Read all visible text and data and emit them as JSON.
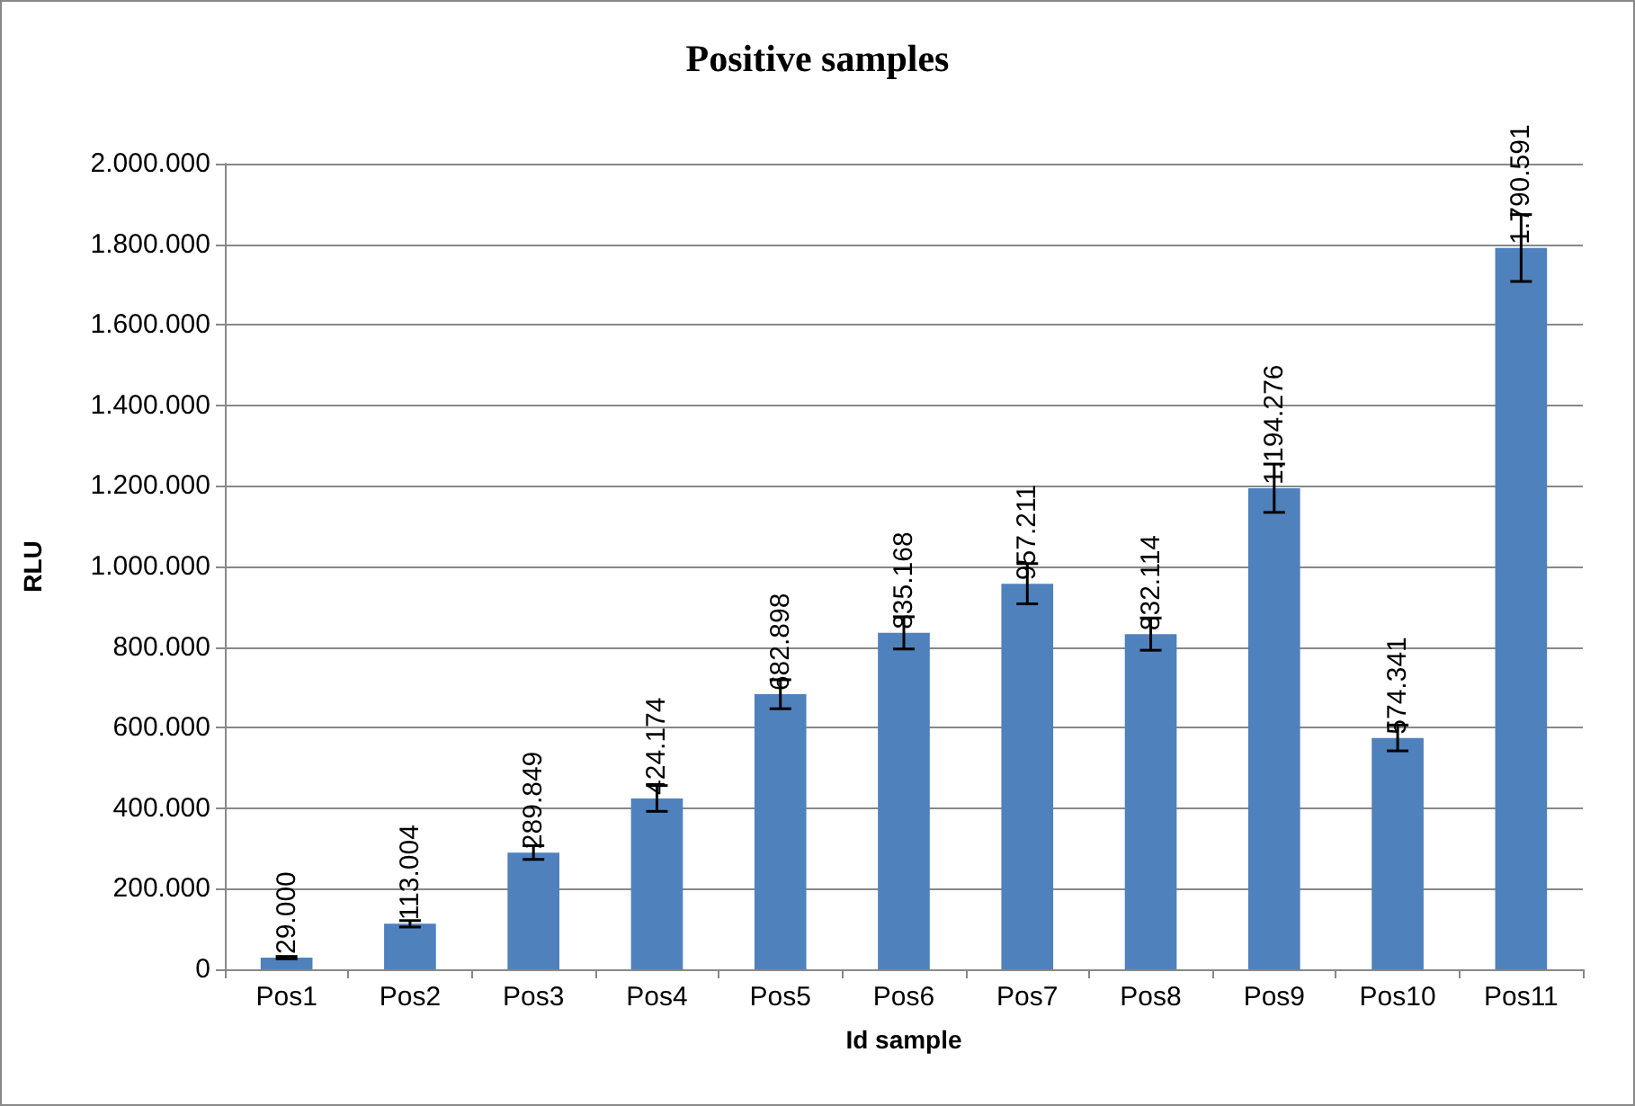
{
  "chart_data": {
    "type": "bar",
    "title": "Positive samples",
    "xlabel": "Id sample",
    "ylabel": "RLU",
    "categories": [
      "Pos1",
      "Pos2",
      "Pos3",
      "Pos4",
      "Pos5",
      "Pos6",
      "Pos7",
      "Pos8",
      "Pos9",
      "Pos10",
      "Pos11"
    ],
    "values": [
      29000,
      113004,
      289849,
      424174,
      682898,
      835168,
      957211,
      832114,
      1194276,
      574341,
      1790591
    ],
    "errors": [
      3000,
      8000,
      17000,
      32000,
      36000,
      40000,
      50000,
      40000,
      60000,
      32000,
      83000
    ],
    "value_labels": [
      "29.000",
      "113.004",
      "289.849",
      "424.174",
      "682.898",
      "835.168",
      "957.211",
      "832.114",
      "1.194.276",
      "574.341",
      "1.790.591"
    ],
    "color": "#4f81bd",
    "ylim": [
      0,
      2000000
    ],
    "yticks": [
      {
        "value": 0,
        "label": "0"
      },
      {
        "value": 200000,
        "label": "200.000"
      },
      {
        "value": 400000,
        "label": "400.000"
      },
      {
        "value": 600000,
        "label": "600.000"
      },
      {
        "value": 800000,
        "label": "800.000"
      },
      {
        "value": 1000000,
        "label": "1.000.000"
      },
      {
        "value": 1200000,
        "label": "1.200.000"
      },
      {
        "value": 1400000,
        "label": "1.400.000"
      },
      {
        "value": 1600000,
        "label": "1.600.000"
      },
      {
        "value": 1800000,
        "label": "1.800.000"
      },
      {
        "value": 2000000,
        "label": "2.000.000"
      }
    ],
    "grid": "y"
  }
}
